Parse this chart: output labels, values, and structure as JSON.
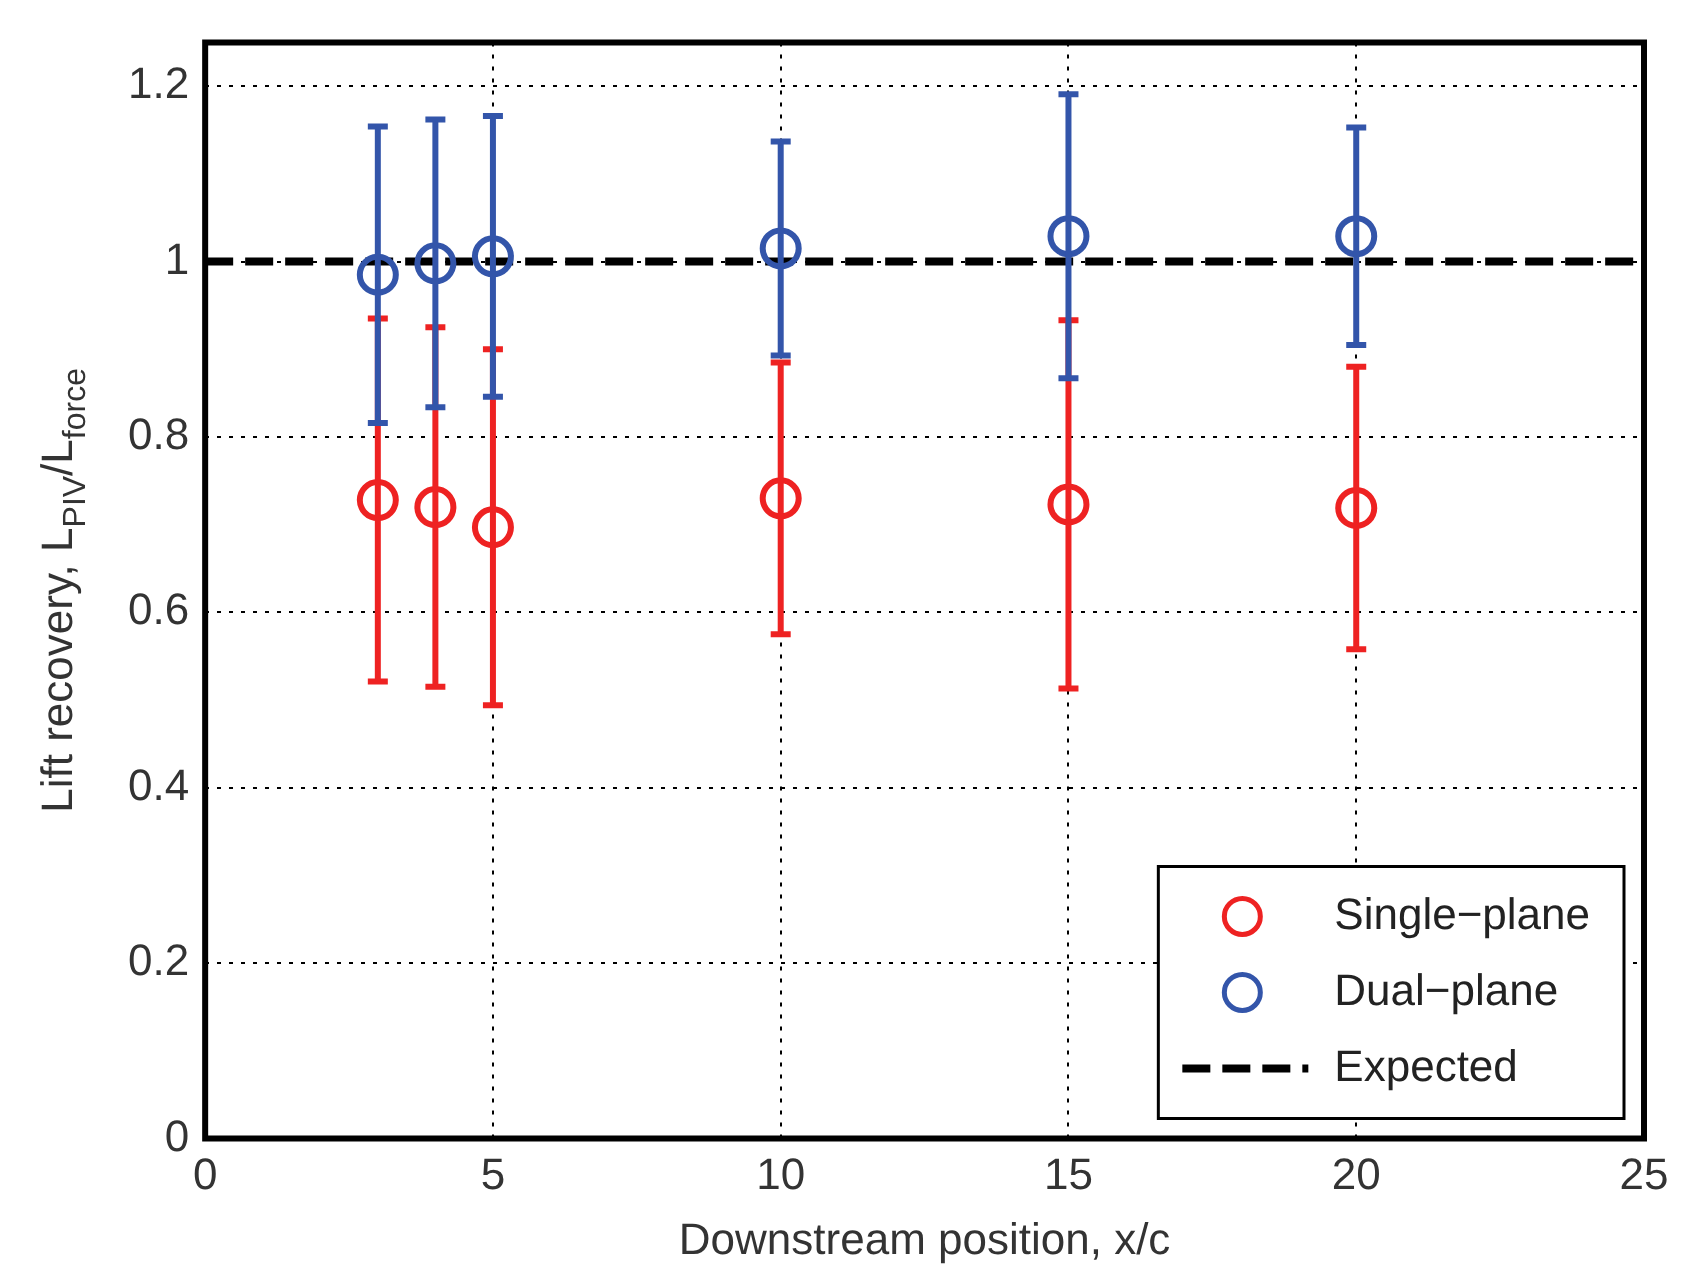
{
  "chart_data": {
    "type": "scatter",
    "xlabel": "Downstream position, x/c",
    "ylabel": "Lift recovery, L$_{PIV}$/L$_{force}$",
    "x": [
      3,
      4,
      5,
      10,
      15,
      20
    ],
    "series": [
      {
        "name": "Single−plane",
        "color": "#ee2222",
        "values": [
          0.728,
          0.72,
          0.697,
          0.73,
          0.723,
          0.719
        ],
        "errors": [
          0.207,
          0.205,
          0.203,
          0.155,
          0.21,
          0.161
        ]
      },
      {
        "name": "Dual−plane",
        "color": "#3355aa",
        "values": [
          0.985,
          0.998,
          1.006,
          1.015,
          1.029,
          1.029
        ],
        "errors": [
          0.169,
          0.164,
          0.16,
          0.122,
          0.162,
          0.124
        ]
      }
    ],
    "ref_lines": [
      {
        "axis": "y",
        "value": 1,
        "label": "Expected",
        "color": "#000000",
        "line_style": "dashed"
      }
    ],
    "xlim": [
      0,
      25
    ],
    "xticks": [
      0,
      5,
      10,
      15,
      20,
      25
    ],
    "ylim": [
      0,
      1.25
    ],
    "yticks": [
      0,
      0.2,
      0.4,
      0.6,
      0.8,
      1,
      1.2
    ],
    "grid": true,
    "legend": "bottom right",
    "marker": "circle"
  }
}
